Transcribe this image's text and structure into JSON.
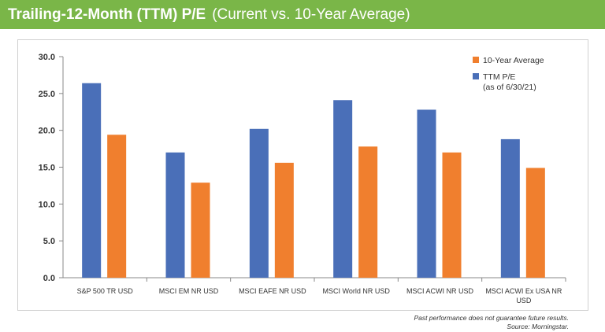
{
  "header": {
    "title": "Trailing-12-Month (TTM) P/E",
    "subtitle": "(Current vs. 10-Year Average)"
  },
  "colors": {
    "header_bg": "#7ab648",
    "ttm": "#4a6fb8",
    "avg": "#f07f2e"
  },
  "chart_data": {
    "type": "bar",
    "title": "Trailing-12-Month (TTM) P/E (Current vs. 10-Year Average)",
    "categories": [
      "S&P 500 TR USD",
      "MSCI EM NR USD",
      "MSCI EAFE NR USD",
      "MSCI World NR USD",
      "MSCI ACWI NR USD",
      "MSCI ACWI Ex USA NR USD"
    ],
    "series": [
      {
        "name": "TTM P/E (as of 6/30/21)",
        "legend_lines": [
          "TTM P/E",
          "(as of 6/30/21)"
        ],
        "color": "#4a6fb8",
        "values": [
          26.4,
          17.0,
          20.2,
          24.1,
          22.8,
          18.8
        ]
      },
      {
        "name": "10-Year Average",
        "legend_lines": [
          "10-Year Average"
        ],
        "color": "#f07f2e",
        "values": [
          19.4,
          12.9,
          15.6,
          17.8,
          17.0,
          14.9
        ]
      }
    ],
    "ylim": [
      0,
      30
    ],
    "yticks": [
      "0.0",
      "5.0",
      "10.0",
      "15.0",
      "20.0",
      "25.0",
      "30.0"
    ],
    "xlabel": "",
    "ylabel": "",
    "legend_position": "top-right",
    "grid": false
  },
  "footnote": {
    "line1": "Past performance does not guarantee future results.",
    "line2": "Source: Morningstar."
  }
}
